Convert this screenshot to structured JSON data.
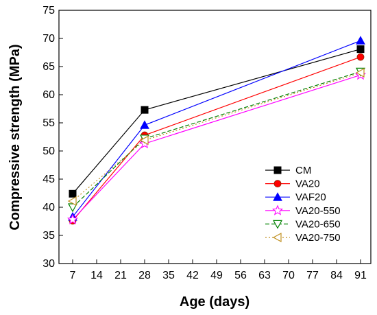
{
  "chart_data": {
    "type": "line",
    "title": "",
    "xlabel": "Age (days)",
    "ylabel": "Compressive strength (MPa)",
    "xlim": [
      3,
      94
    ],
    "ylim": [
      30,
      75
    ],
    "xticks": [
      7,
      14,
      21,
      28,
      35,
      42,
      49,
      56,
      63,
      70,
      77,
      84,
      91
    ],
    "yticks": [
      30,
      35,
      40,
      45,
      50,
      55,
      60,
      65,
      70,
      75
    ],
    "grid": false,
    "legend_position": "bottom-right",
    "x": [
      7,
      28,
      91
    ],
    "series": [
      {
        "name": "CM",
        "values": [
          42.4,
          57.3,
          68.1
        ],
        "color": "#000000",
        "marker": "square-filled",
        "dash": "solid"
      },
      {
        "name": "VA20",
        "values": [
          37.6,
          52.8,
          66.7
        ],
        "color": "#ff0000",
        "marker": "circle-filled",
        "dash": "solid"
      },
      {
        "name": "VAF20",
        "values": [
          38.3,
          54.6,
          69.6
        ],
        "color": "#0000ff",
        "marker": "triangle-up-filled",
        "dash": "solid"
      },
      {
        "name": "VA20-550",
        "values": [
          37.8,
          51.3,
          63.5
        ],
        "color": "#ff00ff",
        "marker": "star-open",
        "dash": "solid"
      },
      {
        "name": "VA20-650",
        "values": [
          40.0,
          52.2,
          64.1
        ],
        "color": "#008000",
        "marker": "triangle-down-open",
        "dash": "dashed"
      },
      {
        "name": "VA20-750",
        "values": [
          41.1,
          51.9,
          63.9
        ],
        "color": "#c09020",
        "marker": "triangle-left-open",
        "dash": "dotted"
      }
    ]
  }
}
